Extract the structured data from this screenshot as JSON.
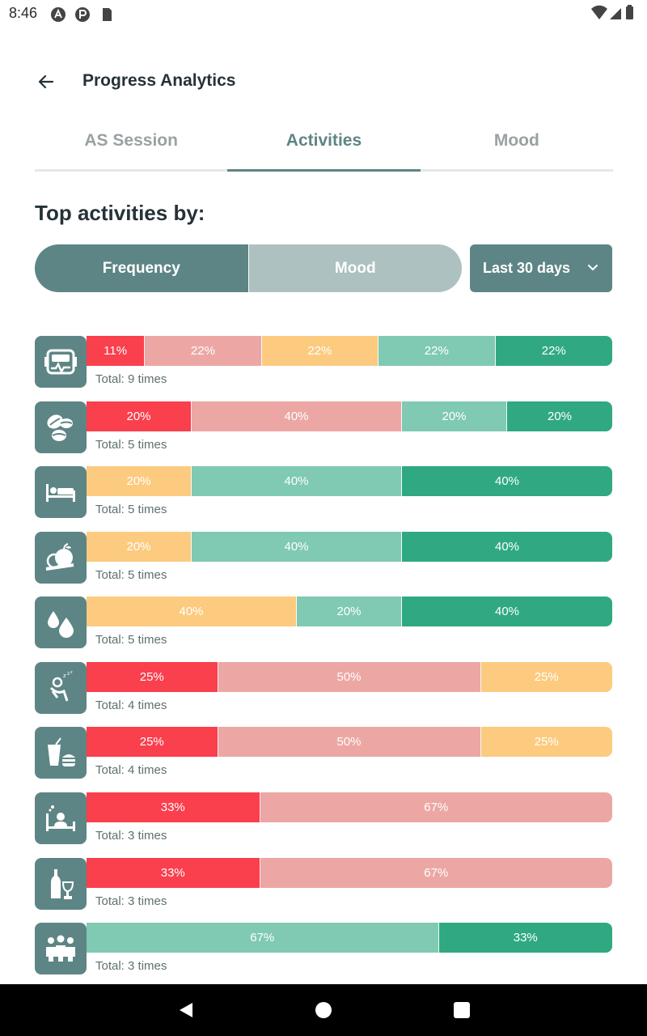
{
  "status_bar": {
    "time": "8:46"
  },
  "app_bar": {
    "title": "Progress Analytics"
  },
  "tabs": [
    {
      "label": "AS Session",
      "active": false
    },
    {
      "label": "Activities",
      "active": true
    },
    {
      "label": "Mood",
      "active": false
    }
  ],
  "section_title": "Top activities by:",
  "segmented": {
    "frequency_label": "Frequency",
    "mood_label": "Mood",
    "selected": "Frequency"
  },
  "period_dropdown": {
    "value": "Last 30 days"
  },
  "mood_colors": {
    "awful": "#fa3f4d",
    "bad": "#eca7a4",
    "meh": "#fccb80",
    "good": "#80c9b2",
    "rad": "#30a982"
  },
  "activities": [
    {
      "icon": "fitness-tracker-icon",
      "total": "Total: 9 times",
      "segments": [
        {
          "mood": "awful",
          "percent": 11,
          "label": "11%"
        },
        {
          "mood": "bad",
          "percent": 22,
          "label": "22%"
        },
        {
          "mood": "meh",
          "percent": 22,
          "label": "22%"
        },
        {
          "mood": "good",
          "percent": 22,
          "label": "22%"
        },
        {
          "mood": "rad",
          "percent": 22,
          "label": "22%"
        }
      ]
    },
    {
      "icon": "coffee-beans-icon",
      "total": "Total: 5 times",
      "segments": [
        {
          "mood": "awful",
          "percent": 20,
          "label": "20%"
        },
        {
          "mood": "bad",
          "percent": 40,
          "label": "40%"
        },
        {
          "mood": "good",
          "percent": 20,
          "label": "20%"
        },
        {
          "mood": "rad",
          "percent": 20,
          "label": "20%"
        }
      ]
    },
    {
      "icon": "bed-icon",
      "total": "Total: 5 times",
      "segments": [
        {
          "mood": "meh",
          "percent": 20,
          "label": "20%"
        },
        {
          "mood": "good",
          "percent": 40,
          "label": "40%"
        },
        {
          "mood": "rad",
          "percent": 40,
          "label": "40%"
        }
      ]
    },
    {
      "icon": "healthy-food-icon",
      "total": "Total: 5 times",
      "segments": [
        {
          "mood": "meh",
          "percent": 20,
          "label": "20%"
        },
        {
          "mood": "good",
          "percent": 40,
          "label": "40%"
        },
        {
          "mood": "rad",
          "percent": 40,
          "label": "40%"
        }
      ]
    },
    {
      "icon": "water-drop-icon",
      "total": "Total: 5 times",
      "segments": [
        {
          "mood": "meh",
          "percent": 40,
          "label": "40%"
        },
        {
          "mood": "good",
          "percent": 20,
          "label": "20%"
        },
        {
          "mood": "rad",
          "percent": 40,
          "label": "40%"
        }
      ]
    },
    {
      "icon": "sleeping-person-icon",
      "total": "Total: 4 times",
      "segments": [
        {
          "mood": "awful",
          "percent": 25,
          "label": "25%"
        },
        {
          "mood": "bad",
          "percent": 50,
          "label": "50%"
        },
        {
          "mood": "meh",
          "percent": 25,
          "label": "25%"
        }
      ]
    },
    {
      "icon": "fast-food-icon",
      "total": "Total: 4 times",
      "segments": [
        {
          "mood": "awful",
          "percent": 25,
          "label": "25%"
        },
        {
          "mood": "bad",
          "percent": 50,
          "label": "50%"
        },
        {
          "mood": "meh",
          "percent": 25,
          "label": "25%"
        }
      ]
    },
    {
      "icon": "sick-in-bed-icon",
      "total": "Total: 3 times",
      "segments": [
        {
          "mood": "awful",
          "percent": 33,
          "label": "33%"
        },
        {
          "mood": "bad",
          "percent": 67,
          "label": "67%"
        }
      ]
    },
    {
      "icon": "alcohol-icon",
      "total": "Total: 3 times",
      "segments": [
        {
          "mood": "awful",
          "percent": 33,
          "label": "33%"
        },
        {
          "mood": "bad",
          "percent": 67,
          "label": "67%"
        }
      ]
    },
    {
      "icon": "friends-icon",
      "total": "Total: 3 times",
      "segments": [
        {
          "mood": "good",
          "percent": 67,
          "label": "67%"
        },
        {
          "mood": "rad",
          "percent": 33,
          "label": "33%"
        }
      ]
    }
  ],
  "nav_bar": {
    "buttons": [
      "back-icon",
      "home-icon",
      "recents-icon"
    ]
  }
}
